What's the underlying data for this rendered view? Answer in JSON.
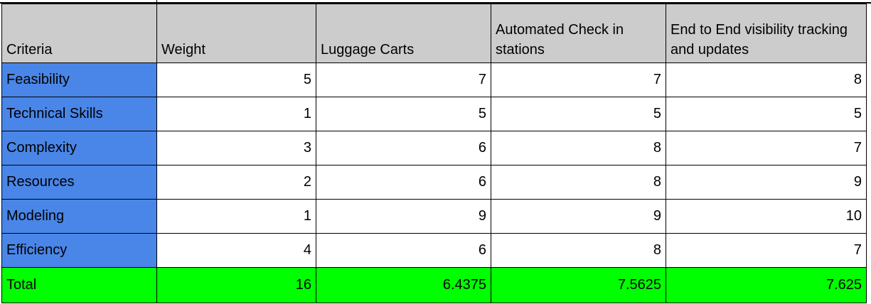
{
  "headers": {
    "criteria": "Criteria",
    "weight": "Weight",
    "luggage_carts": "Luggage Carts",
    "automated_checkin": "Automated Check in stations",
    "end_to_end": "End to End visibility tracking and updates"
  },
  "rows": [
    {
      "criteria": "Feasibility",
      "weight": "5",
      "luggage_carts": "7",
      "automated_checkin": "7",
      "end_to_end": "8"
    },
    {
      "criteria": "Technical Skills",
      "weight": "1",
      "luggage_carts": "5",
      "automated_checkin": "5",
      "end_to_end": "5"
    },
    {
      "criteria": "Complexity",
      "weight": "3",
      "luggage_carts": "6",
      "automated_checkin": "8",
      "end_to_end": "7"
    },
    {
      "criteria": "Resources",
      "weight": "2",
      "luggage_carts": "6",
      "automated_checkin": "8",
      "end_to_end": "9"
    },
    {
      "criteria": "Modeling",
      "weight": "1",
      "luggage_carts": "9",
      "automated_checkin": "9",
      "end_to_end": "10"
    },
    {
      "criteria": "Efficiency",
      "weight": "4",
      "luggage_carts": "6",
      "automated_checkin": "8",
      "end_to_end": "7"
    }
  ],
  "total": {
    "criteria": "Total",
    "weight": "16",
    "luggage_carts": "6.4375",
    "automated_checkin": "7.5625",
    "end_to_end": "7.625"
  },
  "colors": {
    "header_bg": "#cccccc",
    "criteria_bg": "#4a86e8",
    "total_bg": "#00ff00",
    "cell_bg": "#ffffff",
    "border": "#000000"
  }
}
